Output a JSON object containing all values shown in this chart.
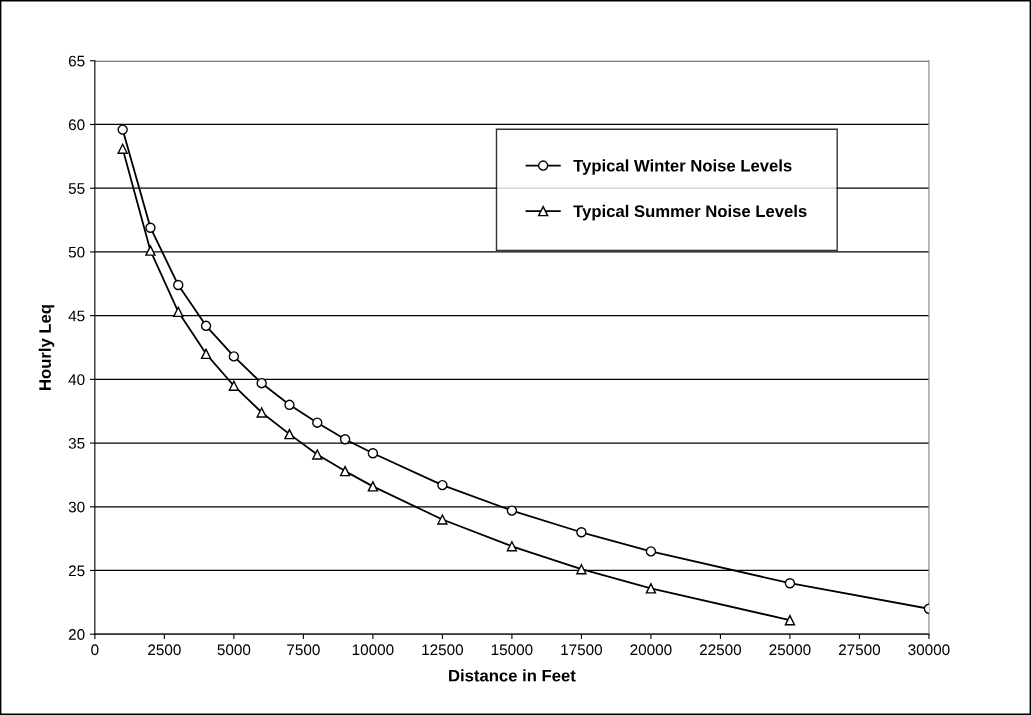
{
  "chart_data": {
    "type": "line",
    "xlabel": "Distance in Feet",
    "ylabel": "Hourly Leq",
    "xlim": [
      0,
      30000
    ],
    "xticks": [
      0,
      2500,
      5000,
      7500,
      10000,
      12500,
      15000,
      17500,
      20000,
      22500,
      25000,
      27500,
      30000
    ],
    "ylim": [
      20,
      65
    ],
    "yticks": [
      20,
      25,
      30,
      35,
      40,
      45,
      50,
      55,
      60,
      65
    ],
    "grid": "y",
    "legend": "top right",
    "series": [
      {
        "name": "Typical Winter Noise Levels",
        "color": "#000000",
        "marker": "circle",
        "x": [
          1000,
          2000,
          3000,
          4000,
          5000,
          6000,
          7000,
          8000,
          9000,
          10000,
          12500,
          15000,
          17500,
          20000,
          25000,
          30000
        ],
        "values": [
          59.6,
          51.9,
          47.4,
          44.2,
          41.8,
          39.7,
          38.0,
          36.6,
          35.3,
          34.2,
          31.7,
          29.7,
          28.0,
          26.5,
          24.0,
          22.0
        ]
      },
      {
        "name": "Typical Summer Noise Levels",
        "color": "#000000",
        "marker": "triangle",
        "x": [
          1000,
          2000,
          3000,
          4000,
          5000,
          6000,
          7000,
          8000,
          9000,
          10000,
          12500,
          15000,
          17500,
          20000,
          25000
        ],
        "values": [
          58.1,
          50.1,
          45.3,
          42.0,
          39.5,
          37.4,
          35.7,
          34.1,
          32.8,
          31.6,
          29.0,
          26.9,
          25.1,
          23.6,
          21.1
        ]
      }
    ]
  }
}
